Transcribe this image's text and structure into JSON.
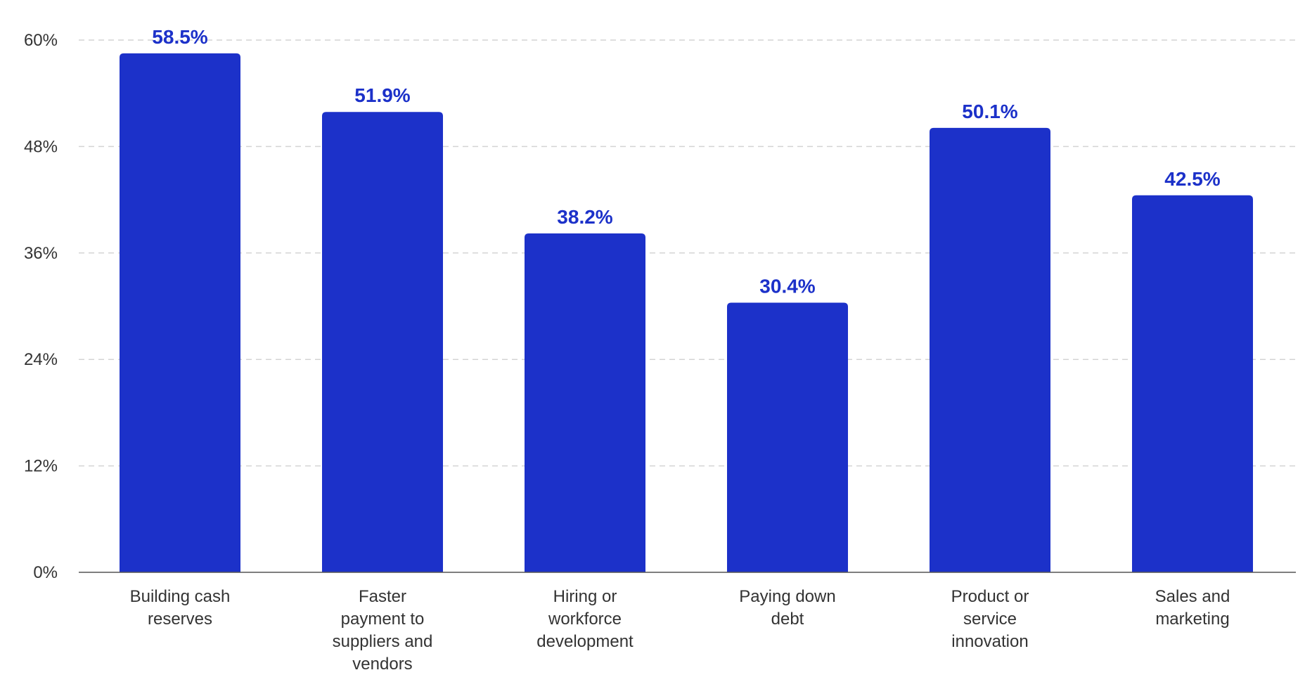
{
  "chart_data": {
    "type": "bar",
    "categories": [
      "Building cash reserves",
      "Faster payment to suppliers and vendors",
      "Hiring or workforce development",
      "Paying down debt",
      "Product or service innovation",
      "Sales and marketing"
    ],
    "category_lines": [
      [
        "Building cash",
        "reserves"
      ],
      [
        "Faster",
        "payment to",
        "suppliers and",
        "vendors"
      ],
      [
        "Hiring or",
        "workforce",
        "development"
      ],
      [
        "Paying down",
        "debt"
      ],
      [
        "Product or",
        "service",
        "innovation"
      ],
      [
        "Sales and",
        "marketing"
      ]
    ],
    "values": [
      58.5,
      51.9,
      38.2,
      30.4,
      50.1,
      42.5
    ],
    "value_labels": [
      "58.5%",
      "51.9%",
      "38.2%",
      "30.4%",
      "50.1%",
      "42.5%"
    ],
    "ylim": [
      0,
      60
    ],
    "yticks": [
      0,
      12,
      24,
      36,
      48,
      60
    ],
    "ytick_labels": [
      "0%",
      "12%",
      "24%",
      "36%",
      "48%",
      "60%"
    ],
    "grid": true,
    "title": "",
    "xlabel": "",
    "ylabel": "",
    "colors": {
      "bar": "#1c31c9",
      "value_label": "#1c31c9"
    }
  }
}
